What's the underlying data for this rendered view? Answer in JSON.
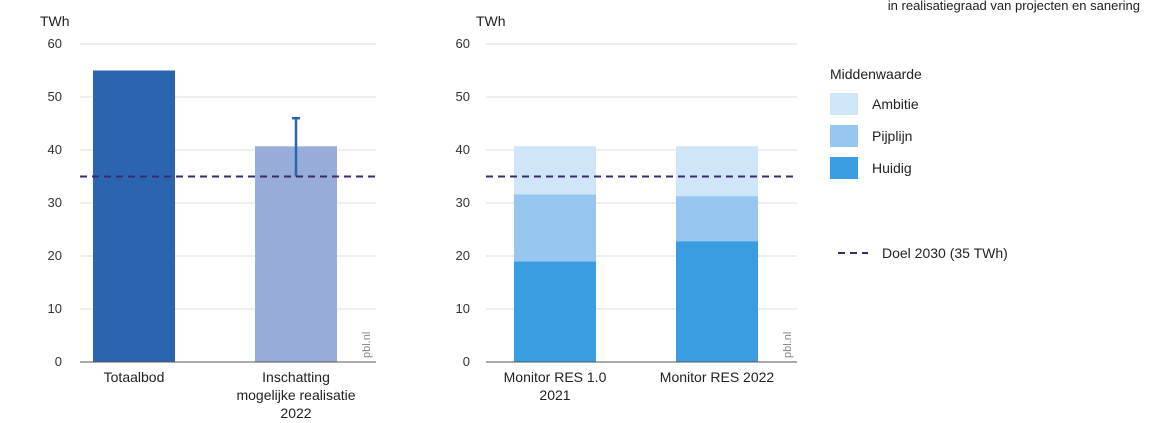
{
  "top_note": "in realisatiegraad van projecten en sanering",
  "chart_data": [
    {
      "type": "bar",
      "unit_label": "TWh",
      "ylim": [
        0,
        60
      ],
      "yticks": [
        0,
        10,
        20,
        30,
        40,
        50,
        60
      ],
      "grid": true,
      "categories": [
        [
          "Totaalbod"
        ],
        [
          "Inschatting",
          "mogelijke realisatie",
          "2022"
        ]
      ],
      "values": [
        55,
        40.7
      ],
      "colors": [
        "#2b65b0",
        "#98acd9"
      ],
      "error_bar": {
        "category_index": 1,
        "low": 35,
        "high": 46,
        "color": "#2b65b0"
      },
      "target_line": {
        "value": 35,
        "color": "#3d2a6e"
      },
      "source": "pbl.nl"
    },
    {
      "type": "bar",
      "stacked": true,
      "unit_label": "TWh",
      "ylim": [
        0,
        60
      ],
      "yticks": [
        0,
        10,
        20,
        30,
        40,
        50,
        60
      ],
      "grid": true,
      "categories": [
        [
          "Monitor RES 1.0",
          "2021"
        ],
        [
          "Monitor RES 2022"
        ]
      ],
      "series": [
        {
          "name": "Huidig",
          "values": [
            19,
            22.8
          ],
          "color": "#3a9de2"
        },
        {
          "name": "Pijplijn",
          "values": [
            12.6,
            8.5
          ],
          "color": "#95c7f0"
        },
        {
          "name": "Ambitie",
          "values": [
            9.1,
            9.4
          ],
          "color": "#cfe5f8"
        }
      ],
      "target_line": {
        "value": 35,
        "color": "#3d2a6e"
      },
      "source": "pbl.nl"
    }
  ],
  "legend": {
    "title": "Middenwaarde",
    "items": [
      {
        "label": "Ambitie",
        "color": "#cfe5f8"
      },
      {
        "label": "Pijplijn",
        "color": "#95c7f0"
      },
      {
        "label": "Huidig",
        "color": "#3a9de2"
      }
    ],
    "target_label": "Doel 2030 (35 TWh)",
    "target_color": "#3d2a6e"
  }
}
